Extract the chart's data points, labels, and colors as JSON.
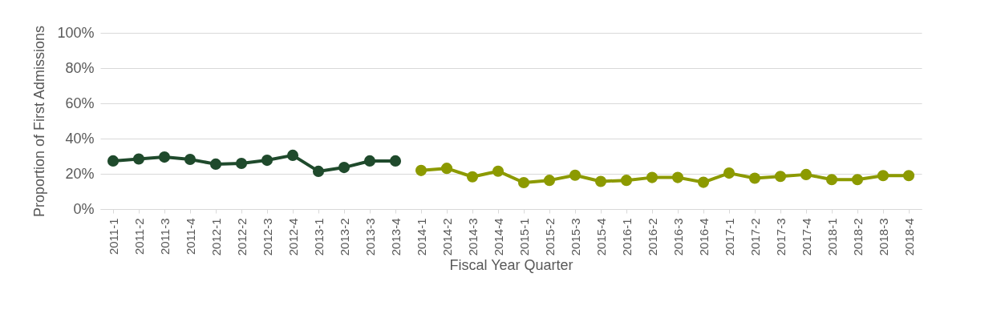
{
  "chart_data": {
    "type": "line",
    "xlabel": "Fiscal Year Quarter",
    "ylabel": "Proportion of First Admissions",
    "categories": [
      "2011-1",
      "2011-2",
      "2011-3",
      "2011-4",
      "2012-1",
      "2012-2",
      "2012-3",
      "2012-4",
      "2013-1",
      "2013-2",
      "2013-3",
      "2013-4",
      "2014-1",
      "2014-2",
      "2014-3",
      "2014-4",
      "2015-1",
      "2015-2",
      "2015-3",
      "2015-4",
      "2016-1",
      "2016-2",
      "2016-3",
      "2016-4",
      "2017-1",
      "2017-2",
      "2017-3",
      "2017-4",
      "2018-1",
      "2018-2",
      "2018-3",
      "2018-4"
    ],
    "series": [
      {
        "color": "#1f4a2c",
        "values": [
          27.3,
          28.4,
          29.5,
          28.2,
          25.5,
          25.9,
          27.7,
          30.5,
          21.4,
          23.6,
          27.3,
          27.3,
          null,
          null,
          null,
          null,
          null,
          null,
          null,
          null,
          null,
          null,
          null,
          null,
          null,
          null,
          null,
          null,
          null,
          null,
          null,
          null
        ]
      },
      {
        "color": "#8c9a00",
        "values": [
          null,
          null,
          null,
          null,
          null,
          null,
          null,
          null,
          null,
          null,
          null,
          null,
          21.9,
          23.1,
          18.3,
          21.5,
          15.0,
          16.3,
          19.2,
          15.7,
          16.3,
          17.9,
          17.9,
          15.2,
          20.4,
          17.5,
          18.5,
          19.6,
          16.7,
          16.7,
          19.0,
          19.0
        ]
      }
    ],
    "ylim": [
      0,
      100
    ],
    "yticks": [
      {
        "value": 0,
        "label": "0%"
      },
      {
        "value": 20,
        "label": "20%"
      },
      {
        "value": 40,
        "label": "40%"
      },
      {
        "value": 60,
        "label": "60%"
      },
      {
        "value": 80,
        "label": "80%"
      },
      {
        "value": 100,
        "label": "100%"
      }
    ],
    "grid": "y",
    "marker": "circle",
    "line_style": "solid"
  }
}
